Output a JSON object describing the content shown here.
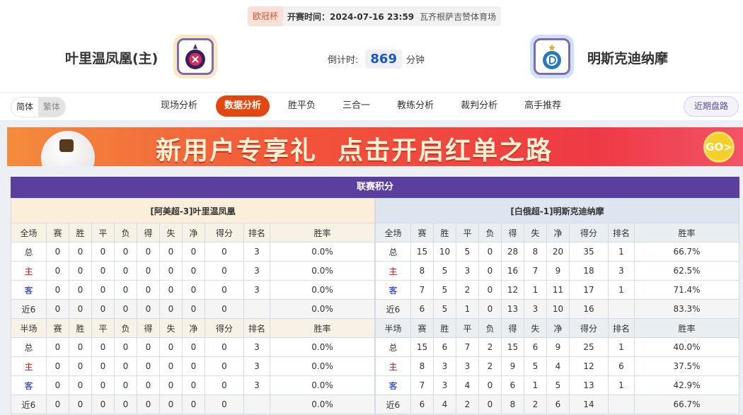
{
  "match": {
    "competition": "欧冠杯",
    "kickoff": "开赛时间：2024-07-16 23:59",
    "venue": "瓦齐根萨吉赞体育场",
    "home_team": "叶里温凤凰(主)",
    "away_team": "明斯克迪纳摩",
    "countdown_label": "倒计时:",
    "countdown_value": "869",
    "countdown_unit": "分钟"
  },
  "nav": {
    "lang": [
      "简体",
      "繁体"
    ],
    "tabs": [
      "现场分析",
      "数据分析",
      "胜平负",
      "三合一",
      "教练分析",
      "裁判分析",
      "高手推荐"
    ],
    "active_tab": 1,
    "recent_button": "近期盘路"
  },
  "banner": {
    "text": "新用户专享礼  点击开启红单之路",
    "go": "GO>"
  },
  "standings": {
    "title": "联赛积分",
    "columns_full": [
      "全场",
      "赛",
      "胜",
      "平",
      "负",
      "得",
      "失",
      "净",
      "得分",
      "排名",
      "胜率"
    ],
    "columns_half": [
      "半场",
      "赛",
      "胜",
      "平",
      "负",
      "得",
      "失",
      "净",
      "得分",
      "排名",
      "胜率"
    ],
    "home": {
      "header": "[阿美超-3]叶里温凤凰",
      "full": [
        [
          "总",
          "0",
          "0",
          "0",
          "0",
          "0",
          "0",
          "0",
          "0",
          "3",
          "0.0%"
        ],
        [
          "主",
          "0",
          "0",
          "0",
          "0",
          "0",
          "0",
          "0",
          "0",
          "3",
          "0.0%"
        ],
        [
          "客",
          "0",
          "0",
          "0",
          "0",
          "0",
          "0",
          "0",
          "0",
          "3",
          "0.0%"
        ],
        [
          "近6",
          "0",
          "0",
          "0",
          "0",
          "0",
          "0",
          "0",
          "0",
          "",
          "0.0%"
        ]
      ],
      "half": [
        [
          "总",
          "0",
          "0",
          "0",
          "0",
          "0",
          "0",
          "0",
          "0",
          "3",
          "0.0%"
        ],
        [
          "主",
          "0",
          "0",
          "0",
          "0",
          "0",
          "0",
          "0",
          "0",
          "3",
          "0.0%"
        ],
        [
          "客",
          "0",
          "0",
          "0",
          "0",
          "0",
          "0",
          "0",
          "0",
          "3",
          "0.0%"
        ],
        [
          "近6",
          "0",
          "0",
          "0",
          "0",
          "0",
          "0",
          "0",
          "0",
          "",
          "0.0%"
        ]
      ]
    },
    "away": {
      "header": "[白俄超-1]明斯克迪纳摩",
      "full": [
        [
          "总",
          "15",
          "10",
          "5",
          "0",
          "28",
          "8",
          "20",
          "35",
          "1",
          "66.7%"
        ],
        [
          "主",
          "8",
          "5",
          "3",
          "0",
          "16",
          "7",
          "9",
          "18",
          "3",
          "62.5%"
        ],
        [
          "客",
          "7",
          "5",
          "2",
          "0",
          "12",
          "1",
          "11",
          "17",
          "1",
          "71.4%"
        ],
        [
          "近6",
          "6",
          "5",
          "1",
          "0",
          "13",
          "3",
          "10",
          "16",
          "",
          "83.3%"
        ]
      ],
      "half": [
        [
          "总",
          "15",
          "6",
          "7",
          "2",
          "15",
          "6",
          "9",
          "25",
          "1",
          "40.0%"
        ],
        [
          "主",
          "8",
          "3",
          "3",
          "2",
          "9",
          "5",
          "4",
          "12",
          "6",
          "37.5%"
        ],
        [
          "客",
          "7",
          "3",
          "4",
          "0",
          "6",
          "1",
          "5",
          "13",
          "1",
          "42.9%"
        ],
        [
          "近6",
          "6",
          "4",
          "2",
          "0",
          "8",
          "2",
          "6",
          "14",
          "",
          "66.7%"
        ]
      ]
    }
  },
  "colors": {
    "accent": "#e2470f",
    "title_bar": "#5b3f9e",
    "home_label": "#e0101a",
    "away_label": "#1020d0"
  }
}
